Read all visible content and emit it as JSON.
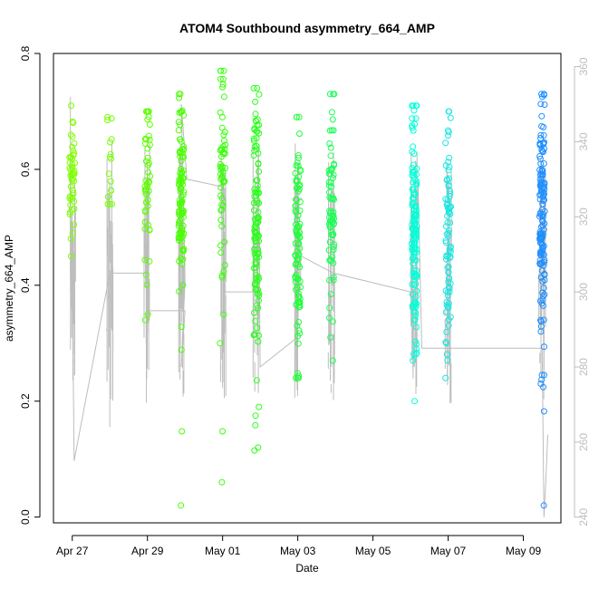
{
  "chart_data": {
    "type": "scatter",
    "title": "ATOM4 Southbound asymmetry_664_AMP",
    "xlabel": "Date",
    "ylabel": "asymmetry_664_AMP",
    "x_ticks": [
      {
        "label": "Apr 27",
        "day": 0
      },
      {
        "label": "Apr 29",
        "day": 2
      },
      {
        "label": "May 01",
        "day": 4
      },
      {
        "label": "May 03",
        "day": 6
      },
      {
        "label": "May 05",
        "day": 8
      },
      {
        "label": "May 07",
        "day": 10
      },
      {
        "label": "May 09",
        "day": 12
      }
    ],
    "xlim_days": [
      -0.5,
      13.0
    ],
    "ylim": [
      -0.01,
      0.8
    ],
    "y_ticks": [
      0.0,
      0.2,
      0.4,
      0.6,
      0.8
    ],
    "y_tick_labels": [
      "0.0",
      "0.2",
      "0.4",
      "0.6",
      "0.8"
    ],
    "y2lim": [
      238.5,
      363.5
    ],
    "y2_ticks": [
      240,
      260,
      280,
      300,
      320,
      340,
      360
    ],
    "y2_tick_labels": [
      "240",
      "260",
      "280",
      "300",
      "320",
      "340",
      "360"
    ],
    "series": [
      {
        "color": "#7fff00",
        "x": 0.0,
        "n": 45,
        "range": [
          0.45,
          0.71
        ],
        "center": 0.6,
        "spread": 0.055,
        "extra": [
          0.45,
          0.71,
          0.49
        ]
      },
      {
        "color": "#74ff00",
        "x": 1.0,
        "n": 14,
        "range": [
          0.54,
          0.69
        ],
        "center": 0.61,
        "spread": 0.045,
        "extra": [
          0.54,
          0.685
        ]
      },
      {
        "color": "#5dff00",
        "x": 2.0,
        "n": 45,
        "range": [
          0.34,
          0.7
        ],
        "center": 0.58,
        "spread": 0.09,
        "extra": [
          0.34,
          0.35,
          0.7
        ]
      },
      {
        "color": "#49ff00",
        "x": 2.9,
        "n": 95,
        "range": [
          0.02,
          0.73
        ],
        "center": 0.56,
        "spread": 0.08,
        "extra": [
          0.02,
          0.148,
          0.73
        ]
      },
      {
        "color": "#39ff0a",
        "x": 4.0,
        "n": 55,
        "range": [
          0.06,
          0.77
        ],
        "center": 0.58,
        "spread": 0.09,
        "extra": [
          0.06,
          0.148,
          0.3,
          0.77
        ]
      },
      {
        "color": "#2bff1c",
        "x": 4.9,
        "n": 110,
        "range": [
          0.115,
          0.74
        ],
        "center": 0.5,
        "spread": 0.12,
        "extra": [
          0.115,
          0.12,
          0.175,
          0.19,
          0.74
        ]
      },
      {
        "color": "#1fff38",
        "x": 6.0,
        "n": 95,
        "range": [
          0.24,
          0.69
        ],
        "center": 0.47,
        "spread": 0.1,
        "extra": [
          0.24,
          0.69
        ]
      },
      {
        "color": "#19ff55",
        "x": 6.9,
        "n": 70,
        "range": [
          0.27,
          0.73
        ],
        "center": 0.52,
        "spread": 0.1,
        "extra": [
          0.27,
          0.73
        ]
      },
      {
        "color": "#00ffd9",
        "x": 9.1,
        "n": 130,
        "range": [
          0.2,
          0.71
        ],
        "center": 0.48,
        "spread": 0.1,
        "extra": [
          0.2,
          0.71
        ]
      },
      {
        "color": "#1ae6e0",
        "x": 10.0,
        "n": 80,
        "range": [
          0.24,
          0.7
        ],
        "center": 0.48,
        "spread": 0.1,
        "extra": [
          0.24,
          0.7
        ]
      },
      {
        "color": "#1f8fff",
        "x": 12.5,
        "n": 140,
        "range": [
          0.02,
          0.73
        ],
        "center": 0.52,
        "spread": 0.1,
        "extra": [
          0.02,
          0.23,
          0.245,
          0.73
        ]
      }
    ],
    "line_series": {
      "color": "#bdbdbd",
      "axis": "right",
      "description_points_day_value": [
        [
          -0.05,
          352
        ],
        [
          -0.05,
          305
        ],
        [
          0.0,
          305
        ],
        [
          0.05,
          255
        ],
        [
          1.0,
          305
        ],
        [
          1.0,
          264
        ],
        [
          1.0,
          305
        ],
        [
          2.0,
          305
        ],
        [
          2.0,
          289
        ],
        [
          2.0,
          295
        ],
        [
          3.0,
          295
        ],
        [
          2.9,
          280
        ],
        [
          3.0,
          303
        ],
        [
          2.9,
          350
        ],
        [
          3.05,
          330
        ],
        [
          4.0,
          328
        ],
        [
          4.05,
          300
        ],
        [
          4.1,
          300
        ],
        [
          4.9,
          300
        ],
        [
          4.95,
          338
        ],
        [
          5.0,
          280
        ],
        [
          6.0,
          288
        ],
        [
          6.05,
          315
        ],
        [
          6.0,
          310
        ],
        [
          6.95,
          305
        ],
        [
          9.0,
          300
        ],
        [
          9.1,
          280
        ],
        [
          9.2,
          329
        ],
        [
          9.3,
          285
        ],
        [
          10.0,
          285
        ],
        [
          12.5,
          285
        ],
        [
          12.55,
          240
        ],
        [
          12.6,
          250
        ],
        [
          12.65,
          262
        ]
      ]
    }
  }
}
